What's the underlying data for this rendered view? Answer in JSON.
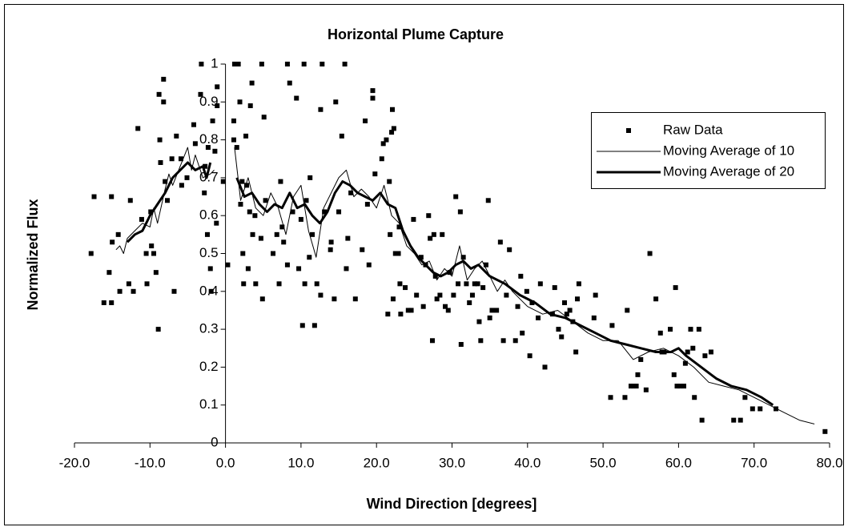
{
  "chart_data": {
    "type": "scatter",
    "title": "Horizontal Plume Capture",
    "xlabel": "Wind Direction [degrees]",
    "ylabel": "Normalized Flux",
    "xlim": [
      -20,
      80
    ],
    "xticks": [
      {
        "value": -20,
        "label": "-20.0"
      },
      {
        "value": -10,
        "label": "-10.0"
      },
      {
        "value": 0,
        "label": "0.0"
      },
      {
        "value": 10,
        "label": "10.0"
      },
      {
        "value": 20,
        "label": "20.0"
      },
      {
        "value": 30,
        "label": "30.0"
      },
      {
        "value": 40,
        "label": "40.0"
      },
      {
        "value": 50,
        "label": "50.0"
      },
      {
        "value": 60,
        "label": "60.0"
      },
      {
        "value": 70,
        "label": "70.0"
      },
      {
        "value": 80,
        "label": "80.0"
      }
    ],
    "ylim": [
      0,
      1
    ],
    "yticks": [
      0,
      0.1,
      0.2,
      0.3,
      0.4,
      0.5,
      0.6,
      0.7,
      0.8,
      0.9,
      1
    ],
    "grid": false,
    "legend": "upper right",
    "series": [
      {
        "name": "Raw Data",
        "style": "markers",
        "color": "#000000",
        "x": [
          -17.8,
          -17.4,
          -16.1,
          -15.1,
          -15.4,
          -15.0,
          -14.2,
          -15.1,
          -14.0,
          -12.8,
          -12.6,
          -12.2,
          -11.6,
          -11.1,
          -10.4,
          -10.5,
          -9.8,
          -9.9,
          -9.5,
          -9.2,
          -8.9,
          -8.7,
          -8.6,
          -8.8,
          -8.2,
          -8.2,
          -8.0,
          -7.7,
          -7.1,
          -6.8,
          -6.5,
          -5.9,
          -5.8,
          -5.1,
          -4.2,
          -4.0,
          -3.3,
          -3.2,
          -2.7,
          -2.8,
          -2.4,
          -2.3,
          -2.0,
          -1.9,
          -1.7,
          -1.4,
          -1.1,
          -1.1,
          -1.2,
          -0.3,
          0.3,
          1.1,
          1.2,
          1.1,
          1.5,
          1.7,
          1.9,
          2.0,
          2.2,
          2.3,
          2.4,
          2.7,
          2.8,
          3.0,
          3.2,
          3.3,
          3.5,
          3.6,
          3.9,
          4.0,
          4.8,
          4.7,
          4.9,
          5.1,
          5.3,
          6.3,
          6.8,
          7.1,
          7.3,
          7.5,
          7.7,
          8.2,
          8.2,
          8.5,
          8.9,
          9.4,
          9.7,
          10.0,
          10.2,
          10.4,
          10.5,
          10.7,
          11.1,
          11.2,
          11.5,
          11.8,
          12.1,
          12.6,
          12.8,
          12.6,
          13.1,
          14.0,
          13.9,
          14.4,
          14.6,
          15.0,
          15.4,
          15.8,
          16.0,
          16.2,
          16.6,
          17.2,
          18.1,
          18.5,
          18.8,
          19.0,
          19.5,
          19.5,
          19.8,
          20.7,
          20.9,
          21.3,
          21.5,
          21.7,
          21.8,
          22.0,
          22.1,
          22.3,
          22.5,
          22.9,
          23.0,
          23.1,
          22.2,
          23.2,
          23.8,
          24.2,
          24.6,
          24.9,
          25.3,
          25.9,
          26.2,
          26.5,
          26.9,
          27.1,
          27.4,
          27.6,
          27.8,
          28.0,
          28.4,
          28.7,
          29.1,
          29.5,
          29.7,
          30.2,
          30.5,
          30.8,
          31.1,
          31.2,
          31.5,
          31.9,
          32.3,
          32.7,
          33.0,
          33.4,
          33.6,
          33.8,
          34.1,
          34.5,
          34.8,
          35.0,
          35.3,
          35.9,
          36.4,
          36.8,
          37.2,
          37.6,
          38.4,
          38.7,
          39.1,
          39.3,
          39.9,
          40.3,
          40.6,
          41.4,
          41.7,
          42.3,
          43.3,
          43.6,
          44.1,
          44.5,
          44.9,
          45.2,
          45.6,
          46.0,
          46.4,
          46.6,
          46.8,
          48.8,
          49.0,
          51.0,
          51.2,
          52.9,
          53.2,
          53.7,
          54.0,
          54.4,
          54.6,
          55.0,
          55.7,
          56.2,
          57.0,
          57.6,
          57.8,
          58.1,
          58.9,
          59.4,
          59.6,
          59.8,
          60.2,
          60.7,
          60.9,
          61.2,
          61.6,
          61.9,
          62.1,
          62.7,
          63.1,
          63.5,
          64.3,
          67.3,
          68.2,
          68.8,
          69.8,
          70.8,
          72.9,
          79.4
        ],
        "values": [
          0.5,
          0.65,
          0.37,
          0.37,
          0.45,
          0.53,
          0.55,
          0.65,
          0.4,
          0.42,
          0.64,
          0.4,
          0.83,
          0.59,
          0.42,
          0.5,
          0.52,
          0.61,
          0.5,
          0.45,
          0.3,
          0.8,
          0.74,
          0.92,
          0.9,
          0.96,
          0.69,
          0.64,
          0.75,
          0.4,
          0.81,
          0.75,
          0.68,
          0.7,
          0.84,
          0.79,
          0.92,
          1.0,
          0.73,
          0.66,
          0.55,
          0.78,
          0.46,
          0.4,
          0.85,
          0.77,
          0.89,
          0.94,
          0.58,
          0.69,
          0.47,
          0.85,
          1.0,
          0.8,
          0.78,
          1.0,
          0.9,
          0.63,
          0.69,
          0.5,
          0.42,
          0.81,
          0.68,
          0.46,
          0.61,
          0.89,
          0.95,
          0.55,
          0.6,
          0.42,
          1.0,
          0.54,
          0.38,
          0.86,
          0.64,
          0.5,
          0.55,
          0.42,
          0.69,
          0.57,
          0.53,
          1.0,
          0.47,
          0.95,
          0.61,
          0.91,
          0.46,
          0.59,
          0.31,
          1.0,
          0.42,
          0.64,
          0.49,
          0.7,
          0.55,
          0.31,
          0.42,
          0.39,
          1.0,
          0.88,
          0.61,
          0.53,
          0.51,
          0.38,
          0.9,
          0.61,
          0.81,
          1.0,
          0.46,
          0.54,
          0.66,
          0.38,
          0.51,
          0.85,
          0.63,
          0.47,
          0.93,
          0.91,
          0.71,
          0.75,
          0.79,
          0.8,
          0.34,
          0.69,
          0.55,
          0.82,
          0.88,
          0.83,
          0.5,
          0.5,
          0.57,
          0.42,
          0.38,
          0.34,
          0.41,
          0.35,
          0.35,
          0.59,
          0.39,
          0.49,
          0.36,
          0.47,
          0.6,
          0.54,
          0.27,
          0.55,
          0.44,
          0.38,
          0.39,
          0.55,
          0.36,
          0.35,
          0.45,
          0.39,
          0.65,
          0.42,
          0.61,
          0.26,
          0.49,
          0.42,
          0.37,
          0.39,
          0.42,
          0.42,
          0.32,
          0.27,
          0.41,
          0.47,
          0.64,
          0.33,
          0.35,
          0.35,
          0.53,
          0.27,
          0.39,
          0.51,
          0.27,
          0.36,
          0.44,
          0.29,
          0.4,
          0.23,
          0.37,
          0.33,
          0.42,
          0.2,
          0.34,
          0.41,
          0.3,
          0.28,
          0.37,
          0.34,
          0.35,
          0.32,
          0.24,
          0.38,
          0.42,
          0.33,
          0.39,
          0.12,
          0.31,
          0.12,
          0.35,
          0.15,
          0.15,
          0.15,
          0.18,
          0.22,
          0.14,
          0.5,
          0.38,
          0.29,
          0.24,
          0.24,
          0.3,
          0.18,
          0.41,
          0.15,
          0.15,
          0.15,
          0.21,
          0.24,
          0.3,
          0.25,
          0.12,
          0.3,
          0.06,
          0.23,
          0.24,
          0.06,
          0.06,
          0.12,
          0.09,
          0.09,
          0.09,
          0.03
        ]
      },
      {
        "name": "Moving Average of 10",
        "style": "line",
        "line_width": 1,
        "color": "#000000",
        "x": [
          -14.5,
          -14,
          -13.5,
          -13,
          -12,
          -11,
          -10,
          -9.5,
          -9,
          -8,
          -7.5,
          -7,
          -6,
          -5,
          -4.5,
          -4,
          -3,
          -2,
          -1.5,
          null,
          1.2,
          2,
          3,
          4,
          5,
          6,
          7,
          8,
          9,
          10,
          11,
          12,
          13,
          14,
          15,
          16,
          17,
          18,
          19,
          20,
          21,
          22,
          23,
          24,
          25,
          26,
          27,
          28,
          29,
          30,
          31,
          32,
          33,
          34,
          35,
          36,
          37,
          38,
          39,
          40,
          42,
          44,
          46,
          48,
          50,
          52,
          54,
          56,
          58,
          60,
          62,
          64,
          66,
          68,
          70,
          72,
          74,
          76,
          78
        ],
        "values": [
          0.51,
          0.52,
          0.5,
          0.54,
          0.56,
          0.58,
          0.57,
          0.62,
          0.58,
          0.67,
          0.71,
          0.68,
          0.73,
          0.78,
          0.72,
          0.76,
          0.7,
          0.71,
          0.72,
          null,
          0.78,
          0.64,
          0.7,
          0.62,
          0.6,
          0.66,
          0.62,
          0.55,
          0.65,
          0.68,
          0.56,
          0.49,
          0.62,
          0.66,
          0.7,
          0.72,
          0.65,
          0.67,
          0.65,
          0.62,
          0.68,
          0.6,
          0.58,
          0.52,
          0.5,
          0.47,
          0.48,
          0.43,
          0.46,
          0.44,
          0.52,
          0.43,
          0.46,
          0.48,
          0.44,
          0.4,
          0.43,
          0.4,
          0.38,
          0.36,
          0.34,
          0.35,
          0.32,
          0.29,
          0.27,
          0.27,
          0.22,
          0.24,
          0.25,
          0.23,
          0.2,
          0.16,
          0.15,
          0.14,
          0.12,
          0.1,
          0.08,
          0.06,
          0.05
        ]
      },
      {
        "name": "Moving Average of 20",
        "style": "line",
        "line_width": 3,
        "color": "#000000",
        "x": [
          -13,
          -12,
          -11,
          -10.5,
          -10,
          -9,
          -8,
          -7,
          -6,
          -5,
          -4,
          -3,
          -2.5,
          -2,
          null,
          1.5,
          2.5,
          3.5,
          4.5,
          5.5,
          6.5,
          7.5,
          8.5,
          9.5,
          10.5,
          11.5,
          12.5,
          13.5,
          14.5,
          15.5,
          16.5,
          17.5,
          18.5,
          19.5,
          20.5,
          21.5,
          22.5,
          23.5,
          24.5,
          25.5,
          26.5,
          27.5,
          28.5,
          29.5,
          30.5,
          31.5,
          32.5,
          33.5,
          35,
          37,
          39,
          41,
          43,
          45,
          47,
          49,
          51,
          53,
          55,
          57,
          59,
          60,
          61,
          63,
          65,
          67,
          69,
          71,
          72.5
        ],
        "values": [
          0.53,
          0.55,
          0.56,
          0.58,
          0.6,
          0.63,
          0.66,
          0.7,
          0.72,
          0.74,
          0.72,
          0.73,
          0.7,
          0.74,
          null,
          0.7,
          0.65,
          0.66,
          0.63,
          0.61,
          0.63,
          0.62,
          0.66,
          0.62,
          0.63,
          0.6,
          0.58,
          0.61,
          0.66,
          0.69,
          0.68,
          0.66,
          0.65,
          0.64,
          0.66,
          0.63,
          0.62,
          0.56,
          0.52,
          0.49,
          0.47,
          0.45,
          0.44,
          0.45,
          0.47,
          0.48,
          0.46,
          0.47,
          0.44,
          0.42,
          0.39,
          0.37,
          0.34,
          0.33,
          0.31,
          0.29,
          0.27,
          0.26,
          0.25,
          0.24,
          0.24,
          0.25,
          0.23,
          0.2,
          0.17,
          0.15,
          0.14,
          0.12,
          0.1
        ]
      }
    ]
  }
}
